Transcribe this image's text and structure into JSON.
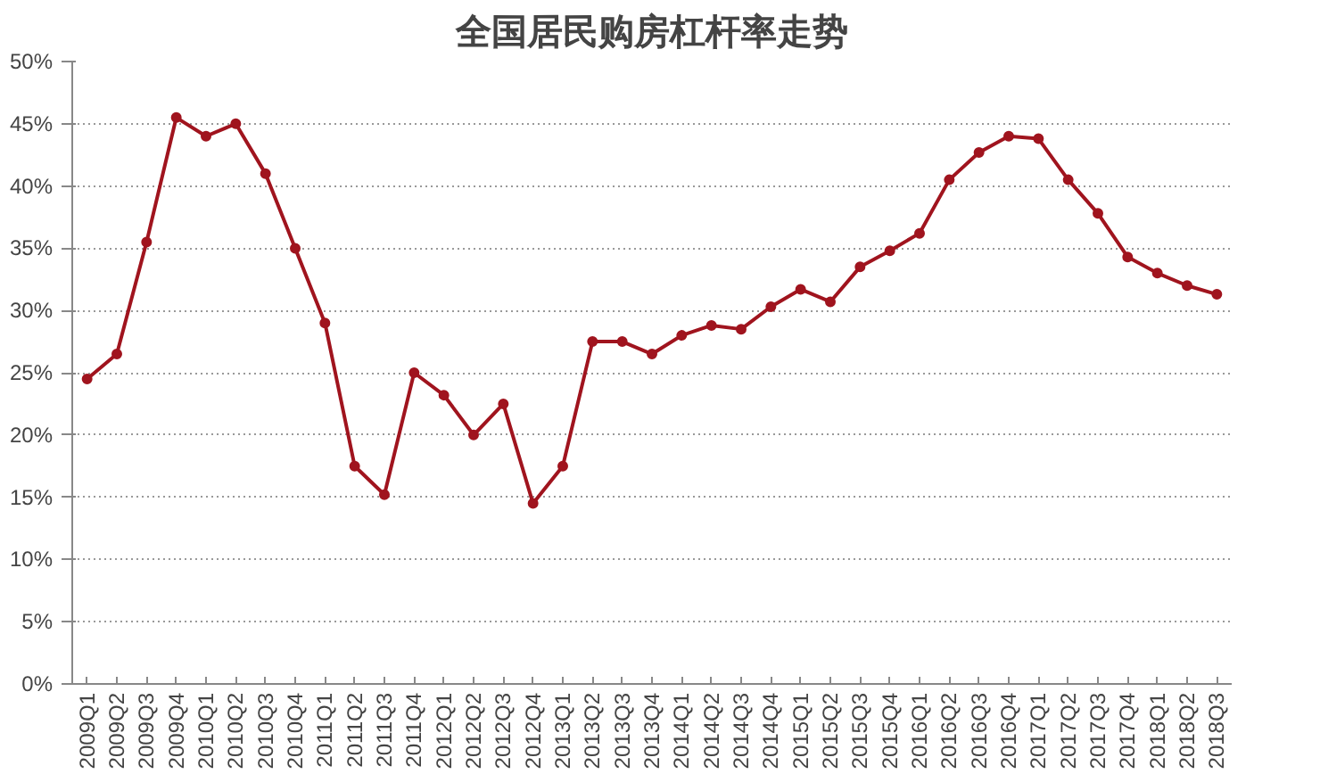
{
  "chart_data": {
    "type": "line",
    "title": "全国居民购房杠杆率走势",
    "categories": [
      "2009Q1",
      "2009Q2",
      "2009Q3",
      "2009Q4",
      "2010Q1",
      "2010Q2",
      "2010Q3",
      "2010Q4",
      "2011Q1",
      "2011Q2",
      "2011Q3",
      "2011Q4",
      "2012Q1",
      "2012Q2",
      "2012Q3",
      "2012Q4",
      "2013Q1",
      "2013Q2",
      "2013Q3",
      "2013Q4",
      "2014Q1",
      "2014Q2",
      "2014Q3",
      "2014Q4",
      "2015Q1",
      "2015Q2",
      "2015Q3",
      "2015Q4",
      "2016Q1",
      "2016Q2",
      "2016Q3",
      "2016Q4",
      "2017Q1",
      "2017Q2",
      "2017Q3",
      "2017Q4",
      "2018Q1",
      "2018Q2",
      "2018Q3"
    ],
    "series": [
      {
        "color": "#a0141e",
        "values": [
          24.5,
          26.5,
          35.5,
          45.5,
          44,
          45,
          41,
          35,
          29,
          17.5,
          15.2,
          25,
          23.2,
          20,
          22.5,
          14.5,
          17.5,
          27.5,
          27.5,
          26.5,
          28,
          28.8,
          28.5,
          30.3,
          31.7,
          30.7,
          33.5,
          34.8,
          36.2,
          40.5,
          42.7,
          44,
          43.8,
          40.5,
          37.8,
          34.3,
          33,
          32,
          31.3
        ]
      }
    ],
    "ylim": [
      0,
      50
    ],
    "yticks": [
      {
        "value": 0,
        "label": "0%"
      },
      {
        "value": 5,
        "label": "5%"
      },
      {
        "value": 10,
        "label": "10%"
      },
      {
        "value": 15,
        "label": "15%"
      },
      {
        "value": 20,
        "label": "20%"
      },
      {
        "value": 25,
        "label": "25%"
      },
      {
        "value": 30,
        "label": "30%"
      },
      {
        "value": 35,
        "label": "35%"
      },
      {
        "value": 40,
        "label": "40%"
      },
      {
        "value": 45,
        "label": "45%"
      },
      {
        "value": 50,
        "label": "50%"
      }
    ],
    "grid": "y",
    "marker": "circle",
    "line_style": "solid"
  }
}
